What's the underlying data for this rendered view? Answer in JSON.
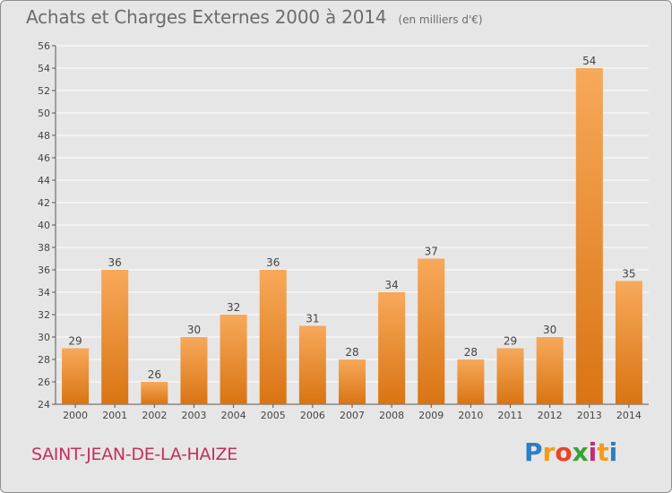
{
  "header": {
    "title": "Achats et Charges Externes 2000 à 2014",
    "subtitle": "(en milliers d'€)"
  },
  "footer": {
    "commune": "SAINT-JEAN-DE-LA-HAIZE",
    "logo": {
      "letters": [
        "P",
        "r",
        "o",
        "x",
        "i",
        "t",
        "i"
      ],
      "colors": [
        "#2b7fc3",
        "#f39c1a",
        "#e8442a",
        "#3aa035",
        "#c42a7a",
        "#f39c1a",
        "#2b7fc3"
      ]
    }
  },
  "colors": {
    "background": "#e6e6e6",
    "bar_top": "#f7a95a",
    "bar_bottom": "#d97413",
    "grid": "#ffffff",
    "commune_text": "#c4305a"
  },
  "chart_data": {
    "type": "bar",
    "title": "Achats et Charges Externes 2000 à 2014",
    "subtitle": "(en milliers d'€)",
    "xlabel": "",
    "ylabel": "",
    "categories": [
      "2000",
      "2001",
      "2002",
      "2003",
      "2004",
      "2005",
      "2006",
      "2007",
      "2008",
      "2009",
      "2010",
      "2011",
      "2012",
      "2013",
      "2014"
    ],
    "values": [
      29,
      36,
      26,
      30,
      32,
      36,
      31,
      28,
      34,
      37,
      28,
      29,
      30,
      54,
      35
    ],
    "ylim": [
      24,
      56
    ],
    "yticks": [
      24,
      26,
      28,
      30,
      32,
      34,
      36,
      38,
      40,
      42,
      44,
      46,
      48,
      50,
      52,
      54,
      56
    ],
    "grid": true,
    "data_labels": true
  }
}
